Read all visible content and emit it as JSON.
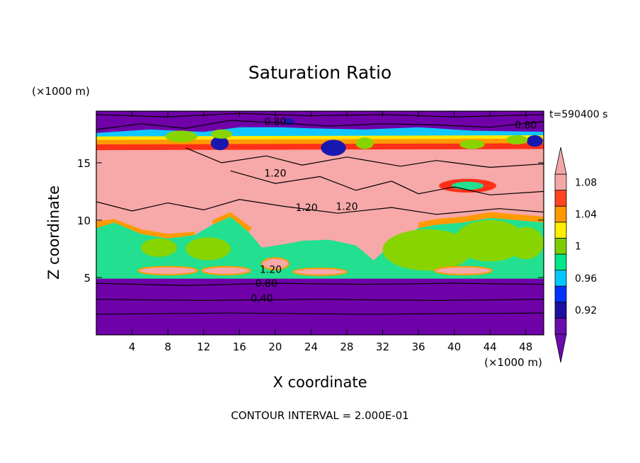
{
  "chart_data": {
    "type": "heatmap",
    "title": "Saturation Ratio",
    "xlabel": "X coordinate",
    "ylabel": "Z coordinate",
    "x_units": "(×1000 m)",
    "y_units": "(×1000 m)",
    "time_label": "t=590400 s",
    "footer": "CONTOUR INTERVAL = 2.000E-01",
    "xlim": [
      0,
      50
    ],
    "ylim": [
      0,
      19.5
    ],
    "x_ticks": [
      4,
      8,
      12,
      16,
      20,
      24,
      28,
      32,
      36,
      40,
      44,
      48
    ],
    "y_ticks": [
      5,
      10,
      15
    ],
    "colorbar": {
      "labels": [
        "0.92",
        "0.96",
        "1",
        "1.04",
        "1.08"
      ],
      "colors": [
        "#6a0dad",
        "#1e0fa0",
        "#0033ff",
        "#00c8ff",
        "#00e68a",
        "#7ccc00",
        "#ffee00",
        "#ff9900",
        "#ff4422",
        "#f2a7a7"
      ]
    },
    "contour_labels": [
      "0.80",
      "0.80",
      "1.20",
      "1.20",
      "1.20",
      "1.20",
      "0.80",
      "0.40"
    ],
    "fill_colors": {
      "low": "#7000a8",
      "mid": "#22e090",
      "lime": "#88d400",
      "high": "#f7a8a8",
      "cyan": "#10c8ff",
      "blue": "#1818b0",
      "yellow": "#ffe800",
      "orange": "#ff9a00",
      "red": "#ff3018"
    }
  }
}
